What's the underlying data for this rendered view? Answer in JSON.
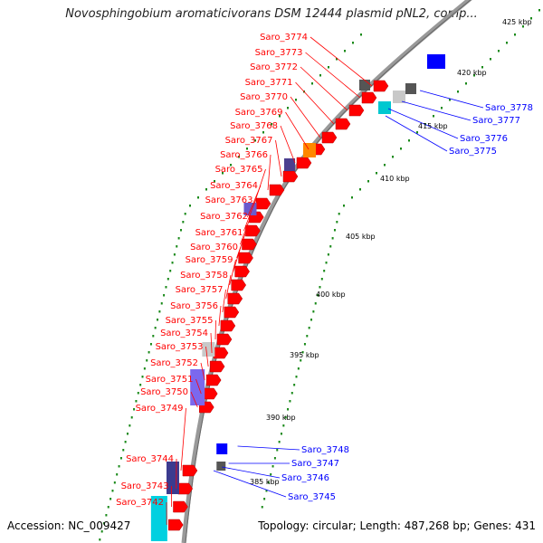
{
  "title": "Novosphingobium aromaticivorans DSM 12444 plasmid pNL2, comp...",
  "accession": "Accession: NC_009427",
  "summary": "Topology: circular; Length: 487,268 bp; Genes: 431",
  "colors": {
    "forward": "#ff0000",
    "reverse": "#0000ff",
    "backbone": "#999999",
    "tick": "#1a8a1a"
  },
  "kbp_ticks": [
    "425 kbp",
    "420 kbp",
    "415 kbp",
    "410 kbp",
    "405 kbp",
    "400 kbp",
    "395 kbp",
    "390 kbp",
    "385 kbp"
  ],
  "labels_forward": [
    "Saro_3774",
    "Saro_3773",
    "Saro_3772",
    "Saro_3771",
    "Saro_3770",
    "Saro_3769",
    "Saro_3768",
    "Saro_3767",
    "Saro_3766",
    "Saro_3765",
    "Saro_3764",
    "Saro_3763",
    "Saro_3762",
    "Saro_3761",
    "Saro_3760",
    "Saro_3759",
    "Saro_3758",
    "Saro_3757",
    "Saro_3756",
    "Saro_3755",
    "Saro_3754",
    "Saro_3753",
    "Saro_3752",
    "Saro_3751",
    "Saro_3750",
    "Saro_3749",
    "Saro_3744",
    "Saro_3743",
    "Saro_3742"
  ],
  "labels_reverse": [
    "Saro_3778",
    "Saro_3777",
    "Saro_3776",
    "Saro_3775",
    "Saro_3748",
    "Saro_3747",
    "Saro_3746",
    "Saro_3745"
  ]
}
